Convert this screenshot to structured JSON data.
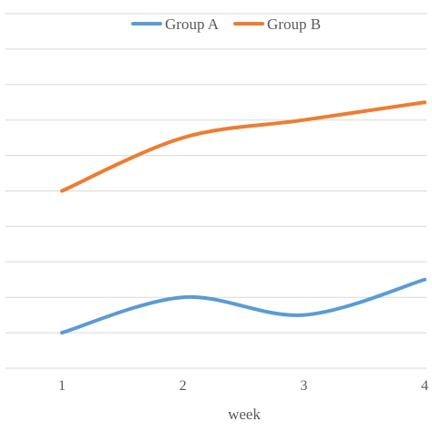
{
  "chart_data": {
    "type": "line",
    "title": "",
    "xlabel": "week",
    "ylabel": "",
    "categories": [
      "1",
      "2",
      "3",
      "4"
    ],
    "y_hidden_ticks": true,
    "ylim": [
      0,
      10
    ],
    "grid": true,
    "legend_position": "top-center",
    "series": [
      {
        "name": "Group A",
        "color": "#5B9BD5",
        "values": [
          1.0,
          2.0,
          1.5,
          2.5
        ]
      },
      {
        "name": "Group B",
        "color": "#ED7D31",
        "values": [
          5.0,
          6.5,
          7.0,
          7.5
        ]
      }
    ]
  }
}
